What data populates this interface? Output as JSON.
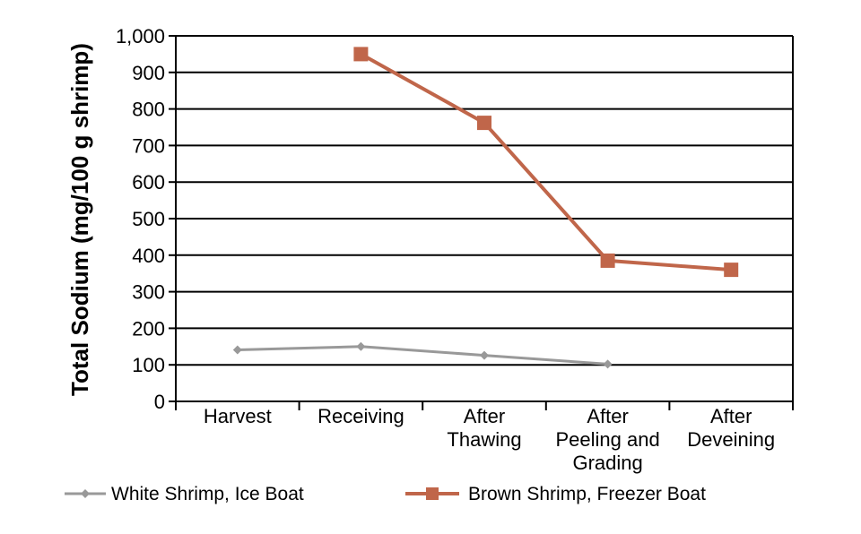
{
  "chart_data": {
    "type": "line",
    "title": "",
    "xlabel": "",
    "ylabel": "Total Sodium (mg/100 g shrimp)",
    "ylim": [
      0,
      1000
    ],
    "yticks": [
      0,
      100,
      200,
      300,
      400,
      500,
      600,
      700,
      800,
      900,
      1000
    ],
    "ytick_labels": [
      "0",
      "100",
      "200",
      "300",
      "400",
      "500",
      "600",
      "700",
      "800",
      "900",
      "1,000"
    ],
    "grid": true,
    "categories": [
      [
        "Harvest"
      ],
      [
        "Receiving"
      ],
      [
        "After",
        "Thawing"
      ],
      [
        "After",
        "Peeling and",
        "Grading"
      ],
      [
        "After",
        "Deveining"
      ]
    ],
    "series": [
      {
        "name": "White Shrimp, Ice Boat",
        "color": "#999999",
        "marker": "diamond",
        "values": [
          141,
          150,
          126,
          102,
          null
        ]
      },
      {
        "name": "Brown Shrimp, Freezer Boat",
        "color": "#c0664a",
        "marker": "square",
        "values": [
          null,
          950,
          762,
          385,
          360
        ]
      }
    ],
    "legend_position": "bottom"
  }
}
